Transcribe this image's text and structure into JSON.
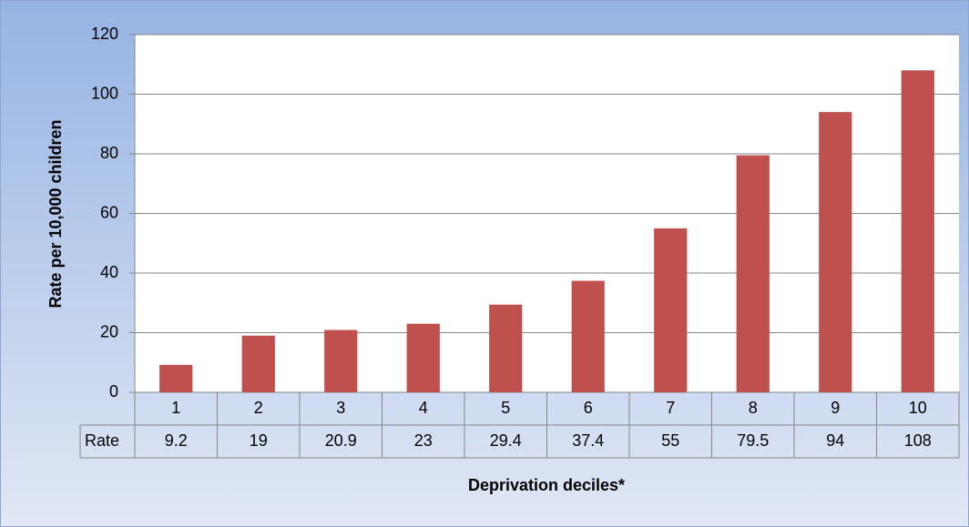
{
  "chart_data": {
    "type": "bar",
    "x_label": "Deprivation deciles*",
    "y_label": "Rate per 10,000 children",
    "categories": [
      "1",
      "2",
      "3",
      "4",
      "5",
      "6",
      "7",
      "8",
      "9",
      "10"
    ],
    "series": [
      {
        "name": "Rate",
        "color": "#c0504d",
        "values": [
          9.2,
          19,
          20.9,
          23,
          29.4,
          37.4,
          55,
          79.5,
          94,
          108
        ]
      }
    ],
    "ylim": [
      0,
      120
    ],
    "yticks": [
      0,
      20,
      40,
      60,
      80,
      100,
      120
    ],
    "grid": true,
    "data_table": true
  }
}
